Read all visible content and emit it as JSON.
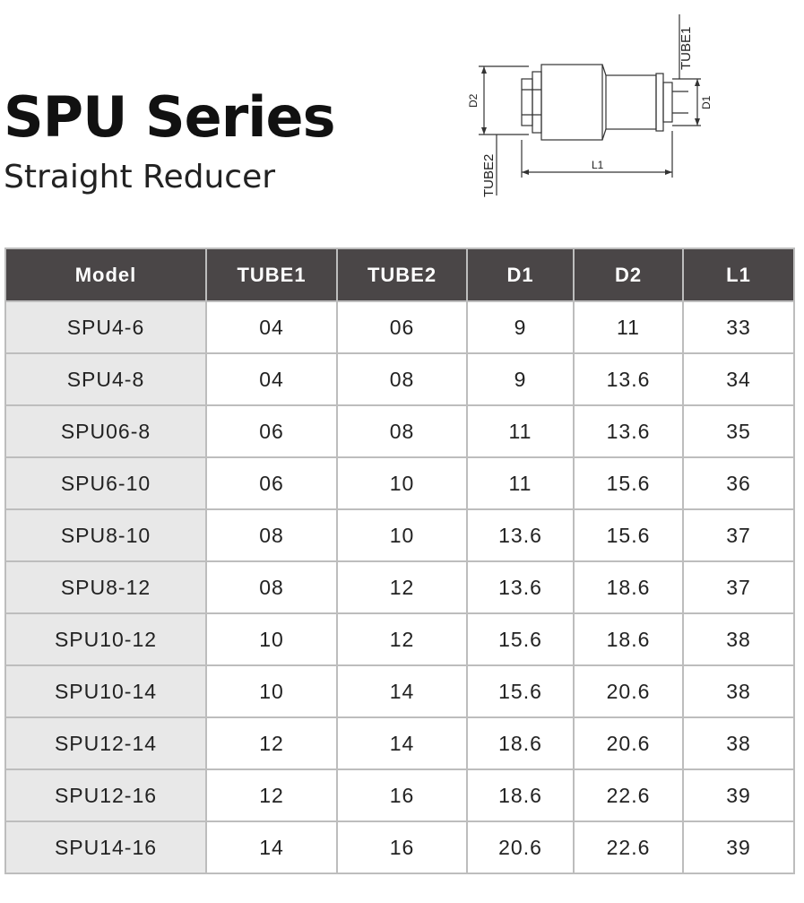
{
  "header": {
    "title": "SPU Series",
    "subtitle": "Straight Reducer"
  },
  "diagram": {
    "labels": {
      "tube1": "TUBE1",
      "tube2": "TUBE2",
      "d1": "D1",
      "d2": "D2",
      "l1": "L1"
    }
  },
  "table": {
    "columns": [
      "Model",
      "TUBE1",
      "TUBE2",
      "D1",
      "D2",
      "L1"
    ],
    "rows": [
      [
        "SPU4-6",
        "04",
        "06",
        "9",
        "11",
        "33"
      ],
      [
        "SPU4-8",
        "04",
        "08",
        "9",
        "13.6",
        "34"
      ],
      [
        "SPU06-8",
        "06",
        "08",
        "11",
        "13.6",
        "35"
      ],
      [
        "SPU6-10",
        "06",
        "10",
        "11",
        "15.6",
        "36"
      ],
      [
        "SPU8-10",
        "08",
        "10",
        "13.6",
        "15.6",
        "37"
      ],
      [
        "SPU8-12",
        "08",
        "12",
        "13.6",
        "18.6",
        "37"
      ],
      [
        "SPU10-12",
        "10",
        "12",
        "15.6",
        "18.6",
        "38"
      ],
      [
        "SPU10-14",
        "10",
        "14",
        "15.6",
        "20.6",
        "38"
      ],
      [
        "SPU12-14",
        "12",
        "14",
        "18.6",
        "20.6",
        "38"
      ],
      [
        "SPU12-16",
        "12",
        "16",
        "18.6",
        "22.6",
        "39"
      ],
      [
        "SPU14-16",
        "14",
        "16",
        "20.6",
        "22.6",
        "39"
      ]
    ]
  },
  "colors": {
    "header_bg": "#4a4647",
    "model_cell_bg": "#e8e8e8",
    "grid": "#bdbdbd"
  }
}
